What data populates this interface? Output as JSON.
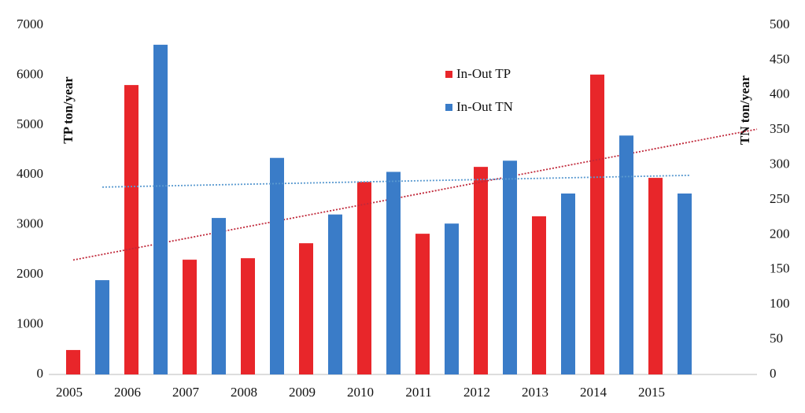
{
  "chart_data": {
    "type": "bar",
    "categories": [
      "2005",
      "2006",
      "2007",
      "2008",
      "2009",
      "2010",
      "2011",
      "2012",
      "2013",
      "2014",
      "2015"
    ],
    "y_label": "TP ton/year",
    "y2_label": "TN ton/year",
    "series": [
      {
        "name": "In-Out TP",
        "color": "#e8262a",
        "trendline": true,
        "trend_color": "#c0283a",
        "values": [
          490,
          5800,
          2300,
          2330,
          2630,
          3860,
          2820,
          4160,
          3170,
          6010,
          3940
        ]
      },
      {
        "name": "In-Out TN",
        "color": "#3a7cc8",
        "axis": "y2",
        "trendline": true,
        "trend_color": "#5a9ad0",
        "values": [
          135,
          472,
          224,
          310,
          229,
          290,
          216,
          306,
          259,
          342,
          259
        ]
      }
    ],
    "ylim": [
      0,
      7000
    ],
    "yticks": [
      0,
      1000,
      2000,
      3000,
      4000,
      5000,
      6000,
      7000
    ],
    "y2lim": [
      0,
      500
    ],
    "y2ticks": [
      0,
      50,
      100,
      150,
      200,
      250,
      300,
      350,
      400,
      450,
      500
    ],
    "legend": "top-center"
  }
}
